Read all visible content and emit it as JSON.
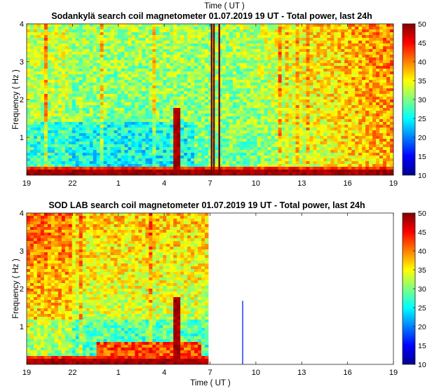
{
  "chart_data": [
    {
      "type": "heatmap",
      "title": "Sodankylä search coil magnetometer 01.07.2019 19 UT - Total power, last 24h",
      "top_label": "Time ( UT )",
      "xlabel": "",
      "ylabel": "Frequency ( Hz )",
      "x_tick_labels": [
        "19",
        "22",
        "1",
        "4",
        "7",
        "10",
        "13",
        "16",
        "19"
      ],
      "xlim_hours": [
        0,
        24
      ],
      "y_tick_labels": [
        "1",
        "2",
        "3",
        "4"
      ],
      "ylim": [
        0,
        4
      ],
      "data_coverage_hours": [
        0,
        24
      ],
      "colorbar": {
        "ticks": [
          "10",
          "15",
          "20",
          "25",
          "30",
          "35",
          "40",
          "45",
          "50"
        ],
        "range": [
          10,
          50
        ],
        "colormap": "jet"
      }
    },
    {
      "type": "heatmap",
      "title": "SOD LAB search coil magnetometer 01.07.2019 19 UT - Total power, last 24h",
      "xlabel": "Time ( UT )",
      "ylabel": "Frequency ( Hz )",
      "x_tick_labels": [
        "19",
        "22",
        "1",
        "4",
        "7",
        "10",
        "13",
        "16",
        "19"
      ],
      "xlim_hours": [
        0,
        24
      ],
      "y_tick_labels": [
        "1",
        "2",
        "3",
        "4"
      ],
      "ylim": [
        0,
        4
      ],
      "data_coverage_hours": [
        0,
        11.8
      ],
      "colorbar": {
        "ticks": [
          "10",
          "15",
          "20",
          "25",
          "30",
          "35",
          "40",
          "45",
          "50"
        ],
        "range": [
          10,
          50
        ],
        "colormap": "jet"
      }
    }
  ]
}
